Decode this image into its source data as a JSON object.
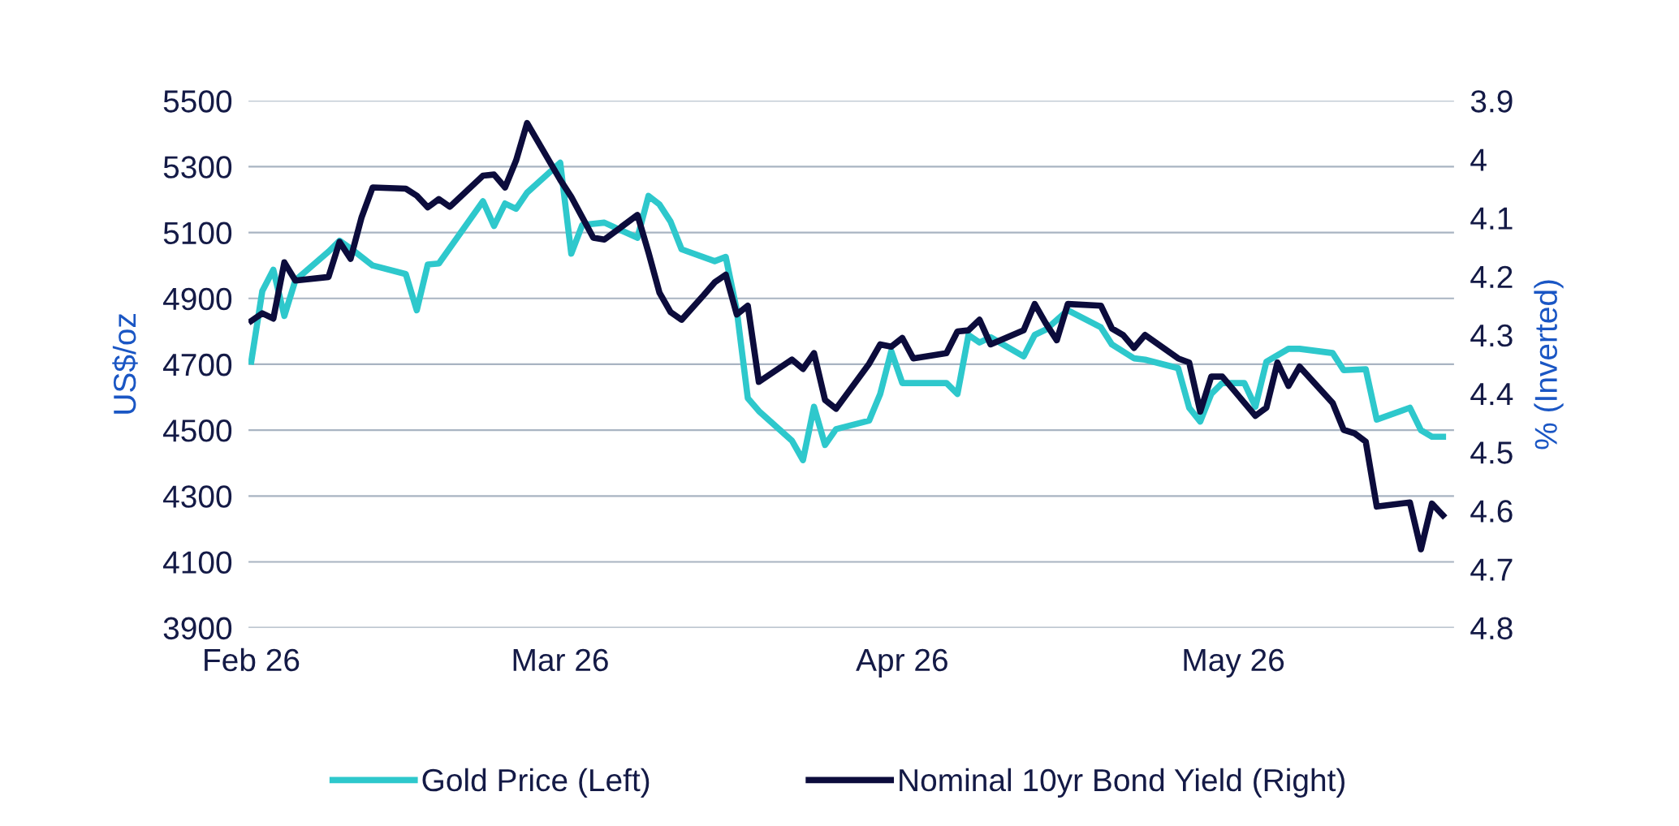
{
  "chart_data": {
    "type": "line",
    "ylabel": "US$/oz",
    "y2label": "% (Inverted)",
    "xlim": [
      "2026-01-31T18:00",
      "2026-05-21"
    ],
    "xticks": [
      {
        "value": "2026-02-01",
        "label": "Feb 26"
      },
      {
        "value": "2026-03-01",
        "label": "Mar 26"
      },
      {
        "value": "2026-04-01",
        "label": "Apr 26"
      },
      {
        "value": "2026-05-01",
        "label": "May 26"
      }
    ],
    "ylim": [
      3900,
      5500
    ],
    "yticks": [
      3900,
      4100,
      4300,
      4500,
      4700,
      4900,
      5100,
      5300,
      5500
    ],
    "y2lim": [
      4.8,
      3.9
    ],
    "y2ticks": [
      3.9,
      4,
      4.1,
      4.2,
      4.3,
      4.4,
      4.5,
      4.6,
      4.7,
      4.8
    ],
    "grid": "y",
    "legend": "bottom",
    "marker": "none",
    "line_style": "solid",
    "series": [
      {
        "name": "Gold Price (Left)",
        "color": "#2ec8cc",
        "x": [
          "2026-02-01",
          "2026-02-02",
          "2026-02-03",
          "2026-02-04",
          "2026-02-05",
          "2026-02-08",
          "2026-02-09",
          "2026-02-10",
          "2026-02-12",
          "2026-02-15",
          "2026-02-16",
          "2026-02-17",
          "2026-02-18",
          "2026-02-22",
          "2026-02-23",
          "2026-02-24",
          "2026-02-25",
          "2026-02-26",
          "2026-03-01",
          "2026-03-02",
          "2026-03-03",
          "2026-03-05",
          "2026-03-08",
          "2026-03-09",
          "2026-03-10",
          "2026-03-11",
          "2026-03-12",
          "2026-03-15",
          "2026-03-16",
          "2026-03-17",
          "2026-03-18",
          "2026-03-19",
          "2026-03-22",
          "2026-03-23",
          "2026-03-24",
          "2026-03-25",
          "2026-03-26",
          "2026-03-29",
          "2026-03-30",
          "2026-03-31",
          "2026-04-01",
          "2026-04-05",
          "2026-04-06",
          "2026-04-07",
          "2026-04-08",
          "2026-04-09",
          "2026-04-12",
          "2026-04-13",
          "2026-04-14",
          "2026-04-16",
          "2026-04-19",
          "2026-04-20",
          "2026-04-22",
          "2026-04-23",
          "2026-04-26",
          "2026-04-27",
          "2026-04-28",
          "2026-04-29",
          "2026-04-30",
          "2026-05-02",
          "2026-05-03",
          "2026-05-04",
          "2026-05-06",
          "2026-05-07",
          "2026-05-10",
          "2026-05-11",
          "2026-05-13",
          "2026-05-14",
          "2026-05-17",
          "2026-05-18",
          "2026-05-19",
          "2026-05-20"
        ],
        "values": [
          4708,
          4922,
          4987,
          4847,
          4955,
          5042,
          5075,
          5052,
          5000,
          4974,
          4864,
          5003,
          5006,
          5195,
          5120,
          5188,
          5172,
          5221,
          5312,
          5036,
          5123,
          5130,
          5084,
          5211,
          5185,
          5133,
          5049,
          5013,
          5026,
          4864,
          4597,
          4558,
          4468,
          4409,
          4571,
          4455,
          4503,
          4529,
          4610,
          4740,
          4643,
          4643,
          4610,
          4789,
          4766,
          4782,
          4724,
          4789,
          4805,
          4864,
          4812,
          4760,
          4718,
          4714,
          4688,
          4568,
          4526,
          4610,
          4643,
          4643,
          4571,
          4708,
          4747,
          4747,
          4734,
          4682,
          4685,
          4532,
          4568,
          4500,
          4480,
          4480
        ]
      },
      {
        "name": "Nominal 10yr Bond Yield (Right)",
        "color": "#0c0c3c",
        "axis": "y2",
        "x": [
          "2026-02-01",
          "2026-02-02",
          "2026-02-03",
          "2026-02-04",
          "2026-02-05",
          "2026-02-08",
          "2026-02-09",
          "2026-02-10",
          "2026-02-11",
          "2026-02-12",
          "2026-02-15",
          "2026-02-16",
          "2026-02-17",
          "2026-02-18",
          "2026-02-19",
          "2026-02-22",
          "2026-02-23",
          "2026-02-24",
          "2026-02-25",
          "2026-02-26",
          "2026-03-01",
          "2026-03-02",
          "2026-03-04",
          "2026-03-05",
          "2026-03-08",
          "2026-03-09",
          "2026-03-10",
          "2026-03-11",
          "2026-03-12",
          "2026-03-14",
          "2026-03-15",
          "2026-03-16",
          "2026-03-17",
          "2026-03-18",
          "2026-03-19",
          "2026-03-22",
          "2026-03-23",
          "2026-03-24",
          "2026-03-25",
          "2026-03-26",
          "2026-03-29",
          "2026-03-30",
          "2026-03-31",
          "2026-04-01",
          "2026-04-02",
          "2026-04-05",
          "2026-04-06",
          "2026-04-07",
          "2026-04-08",
          "2026-04-09",
          "2026-04-12",
          "2026-04-13",
          "2026-04-14",
          "2026-04-15",
          "2026-04-16",
          "2026-04-19",
          "2026-04-20",
          "2026-04-21",
          "2026-04-22",
          "2026-04-23",
          "2026-04-26",
          "2026-04-27",
          "2026-04-28",
          "2026-04-29",
          "2026-04-30",
          "2026-05-03",
          "2026-05-04",
          "2026-05-05",
          "2026-05-06",
          "2026-05-07",
          "2026-05-10",
          "2026-05-11",
          "2026-05-12",
          "2026-05-13",
          "2026-05-14",
          "2026-05-17",
          "2026-05-18",
          "2026-05-19",
          "2026-05-20"
        ],
        "values": [
          4.276,
          4.263,
          4.272,
          4.176,
          4.207,
          4.201,
          4.141,
          4.17,
          4.099,
          4.048,
          4.05,
          4.062,
          4.082,
          4.068,
          4.081,
          4.028,
          4.026,
          4.048,
          4.002,
          3.938,
          4.035,
          4.064,
          4.134,
          4.137,
          4.095,
          4.159,
          4.228,
          4.261,
          4.274,
          4.232,
          4.21,
          4.197,
          4.265,
          4.25,
          4.38,
          4.342,
          4.358,
          4.331,
          4.411,
          4.426,
          4.349,
          4.316,
          4.32,
          4.305,
          4.34,
          4.331,
          4.294,
          4.292,
          4.274,
          4.316,
          4.292,
          4.247,
          4.28,
          4.309,
          4.247,
          4.25,
          4.289,
          4.3,
          4.322,
          4.3,
          4.34,
          4.347,
          4.431,
          4.371,
          4.371,
          4.438,
          4.424,
          4.347,
          4.387,
          4.354,
          4.416,
          4.462,
          4.468,
          4.482,
          4.593,
          4.586,
          4.666,
          4.588,
          4.608
        ]
      }
    ]
  }
}
